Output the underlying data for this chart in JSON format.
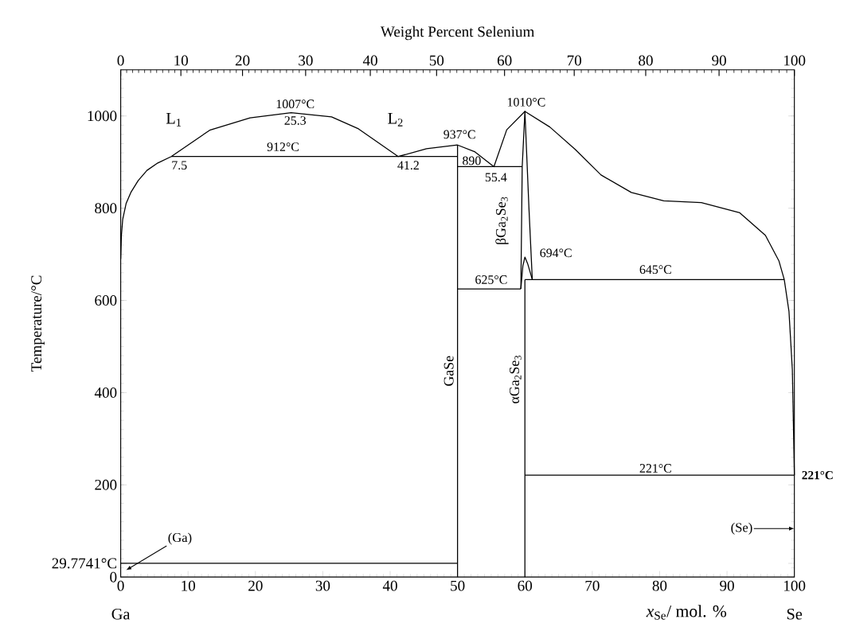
{
  "chart_data": {
    "type": "line",
    "xlabel": "*x*$_{Se}$/ mol. %",
    "ylabel": "Temperature/°C",
    "x2label": "Weight Percent Selenium",
    "xlim": [
      0,
      100
    ],
    "xticks": [
      0,
      10,
      20,
      30,
      40,
      50,
      60,
      70,
      80,
      90,
      100
    ],
    "ylim": [
      0,
      1100
    ],
    "yticks": [
      0,
      {
        "value": 29.7741,
        "label": "29.7741°C"
      },
      200,
      400,
      600,
      800,
      1000
    ],
    "marker": "none",
    "series": [
      {
        "color": "#000000",
        "x": [
          0,
          0.1,
          0.3,
          0.8,
          1.5,
          2.6,
          3.9,
          5.5,
          7.5,
          13.2,
          19.2,
          25.3,
          31.3,
          35.3,
          41.2,
          45.4,
          50,
          52.6,
          55.4,
          57.3,
          60,
          63.7,
          67.5,
          71.3,
          75.8,
          80.6,
          86.2,
          91.9,
          95.7,
          97.7,
          98.5,
          99.2,
          99.7,
          100
        ],
        "values": [
          690,
          740,
          776,
          810,
          834,
          860,
          882,
          898,
          912,
          969,
          996,
          1007,
          998,
          972,
          912,
          929,
          937,
          922,
          890,
          970,
          1010,
          976,
          927,
          872,
          834,
          816,
          812,
          790,
          741,
          686,
          645,
          576,
          450,
          221
        ]
      },
      {
        "color": "#000000",
        "x": [
          7.5,
          50
        ],
        "values": [
          912,
          912
        ]
      },
      {
        "color": "#000000",
        "x": [
          50,
          50
        ],
        "values": [
          0,
          937
        ]
      },
      {
        "color": "#000000",
        "x": [
          50,
          59.6
        ],
        "values": [
          890,
          890
        ]
      },
      {
        "color": "#000000",
        "x": [
          50,
          59.4
        ],
        "values": [
          625,
          625
        ]
      },
      {
        "color": "#000000",
        "x": [
          59.4,
          59.6,
          60,
          60.6,
          61.1
        ],
        "values": [
          625,
          890,
          1010,
          800,
          645
        ]
      },
      {
        "color": "#000000",
        "x": [
          59.4,
          59.7,
          60,
          60.4,
          61.1
        ],
        "values": [
          625,
          675,
          694,
          680,
          645
        ]
      },
      {
        "color": "#000000",
        "x": [
          60,
          60
        ],
        "values": [
          0,
          645
        ]
      },
      {
        "color": "#000000",
        "x": [
          60,
          98.5
        ],
        "values": [
          645,
          645
        ]
      },
      {
        "color": "#000000",
        "x": [
          60,
          100
        ],
        "values": [
          221,
          221
        ]
      },
      {
        "color": "#000000",
        "x": [
          0,
          50
        ],
        "values": [
          29.7741,
          29.7741
        ]
      }
    ],
    "annotations": [
      "L$_{1}$",
      "L$_{2}$",
      "1007°C",
      "25.3",
      "912°C",
      "7.5",
      "41.2",
      "937°C",
      "890",
      "55.4",
      "1010°C",
      "βGa$_{2}$Se$_{3}$",
      "694°C",
      "645°C",
      "625°C",
      "GaSe",
      "αGa$_{2}$Se$_{3}$",
      "221°C",
      "221°C",
      "(Ga)",
      "(Se)",
      "Ga",
      "Se",
      "0",
      "10",
      "20",
      "30",
      "40",
      "50",
      "60",
      "70",
      "80",
      "90",
      "100"
    ]
  }
}
